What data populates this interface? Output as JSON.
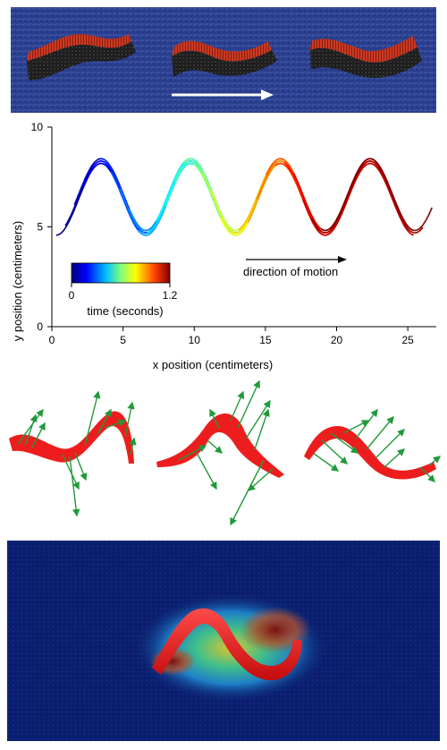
{
  "colors": {
    "sand_blue": "#2a3f8f",
    "body_dark": "#1b1b1b",
    "body_red": "#cc3a22",
    "arrow_white": "#ffffff",
    "force_green": "#1f9a3a",
    "body_bright_red": "#ee1d1d",
    "heat_bg": "#0b1e6e"
  },
  "chart_data": {
    "type": "line",
    "xlabel": "x position (centimeters)",
    "ylabel": "y position (centimeters)",
    "xlim": [
      0,
      27
    ],
    "ylim": [
      0,
      10
    ],
    "xticks": [
      "0",
      "5",
      "10",
      "15",
      "20",
      "25"
    ],
    "yticks": [
      "0",
      "5",
      "10"
    ],
    "grid": false,
    "wave": {
      "center_y": 6.5,
      "amplitude": 1.8,
      "wavelength": 6.3,
      "x_start": 0.3,
      "x_end": 26.7,
      "segment_length": 7.8,
      "snapshots": 30,
      "time_range_s": [
        0,
        1.2
      ]
    },
    "annotations": {
      "direction_label": "direction of motion"
    },
    "colorbar": {
      "label": "time (seconds)",
      "min_label": "0",
      "max_label": "1.2",
      "colormap": "jet"
    }
  }
}
